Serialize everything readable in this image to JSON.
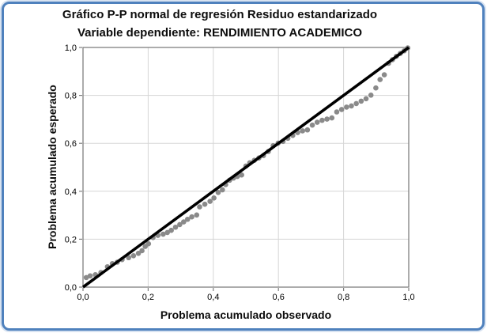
{
  "frame": {
    "border_color": "#4f81bd"
  },
  "chart_data": {
    "type": "scatter",
    "title": "Gráfico P-P normal de regresión Residuo estandarizado",
    "subtitle": "Variable dependiente: RENDIMIENTO ACADEMICO",
    "xlabel": "Problema acumulado observado",
    "ylabel": "Problema acumulado esperado",
    "xlim": [
      0,
      1
    ],
    "ylim": [
      0,
      1
    ],
    "tick_values": [
      0,
      0.2,
      0.4,
      0.6,
      0.8,
      1
    ],
    "x_tick_labels": [
      "0,0",
      "0,2",
      "0,4",
      "0,6",
      "0,8",
      "1,0"
    ],
    "y_tick_labels": [
      "0,0",
      "0,2",
      "0,4",
      "0,6",
      "0,8",
      "1,0"
    ],
    "grid": true,
    "legend": false,
    "colors": {
      "point": "#8a8a8a",
      "reference_line": "#000000",
      "grid": "#d6d6d6",
      "axis_frame": "#7f7f7f",
      "text": "#000000"
    },
    "reference_line": {
      "from": [
        0,
        0
      ],
      "to": [
        1,
        1
      ]
    },
    "points": [
      [
        0.01,
        0.04
      ],
      [
        0.022,
        0.047
      ],
      [
        0.038,
        0.052
      ],
      [
        0.055,
        0.061
      ],
      [
        0.075,
        0.085
      ],
      [
        0.09,
        0.098
      ],
      [
        0.105,
        0.104
      ],
      [
        0.12,
        0.115
      ],
      [
        0.14,
        0.123
      ],
      [
        0.155,
        0.131
      ],
      [
        0.17,
        0.141
      ],
      [
        0.181,
        0.152
      ],
      [
        0.191,
        0.17
      ],
      [
        0.201,
        0.181
      ],
      [
        0.215,
        0.207
      ],
      [
        0.23,
        0.216
      ],
      [
        0.246,
        0.221
      ],
      [
        0.259,
        0.228
      ],
      [
        0.271,
        0.237
      ],
      [
        0.284,
        0.25
      ],
      [
        0.297,
        0.261
      ],
      [
        0.309,
        0.272
      ],
      [
        0.321,
        0.283
      ],
      [
        0.334,
        0.293
      ],
      [
        0.349,
        0.301
      ],
      [
        0.358,
        0.335
      ],
      [
        0.374,
        0.346
      ],
      [
        0.39,
        0.358
      ],
      [
        0.402,
        0.372
      ],
      [
        0.415,
        0.395
      ],
      [
        0.428,
        0.406
      ],
      [
        0.438,
        0.428
      ],
      [
        0.45,
        0.446
      ],
      [
        0.462,
        0.455
      ],
      [
        0.474,
        0.462
      ],
      [
        0.487,
        0.468
      ],
      [
        0.5,
        0.505
      ],
      [
        0.512,
        0.519
      ],
      [
        0.526,
        0.529
      ],
      [
        0.54,
        0.539
      ],
      [
        0.554,
        0.549
      ],
      [
        0.569,
        0.566
      ],
      [
        0.584,
        0.59
      ],
      [
        0.599,
        0.601
      ],
      [
        0.614,
        0.608
      ],
      [
        0.629,
        0.621
      ],
      [
        0.644,
        0.633
      ],
      [
        0.659,
        0.645
      ],
      [
        0.674,
        0.652
      ],
      [
        0.689,
        0.656
      ],
      [
        0.704,
        0.676
      ],
      [
        0.719,
        0.688
      ],
      [
        0.734,
        0.696
      ],
      [
        0.749,
        0.701
      ],
      [
        0.764,
        0.706
      ],
      [
        0.779,
        0.731
      ],
      [
        0.794,
        0.741
      ],
      [
        0.809,
        0.751
      ],
      [
        0.824,
        0.756
      ],
      [
        0.839,
        0.766
      ],
      [
        0.854,
        0.776
      ],
      [
        0.869,
        0.786
      ],
      [
        0.884,
        0.801
      ],
      [
        0.899,
        0.831
      ],
      [
        0.912,
        0.866
      ],
      [
        0.925,
        0.886
      ],
      [
        0.938,
        0.934
      ],
      [
        0.95,
        0.949
      ],
      [
        0.962,
        0.963
      ],
      [
        0.974,
        0.975
      ],
      [
        0.986,
        0.986
      ],
      [
        0.997,
        0.998
      ]
    ]
  }
}
